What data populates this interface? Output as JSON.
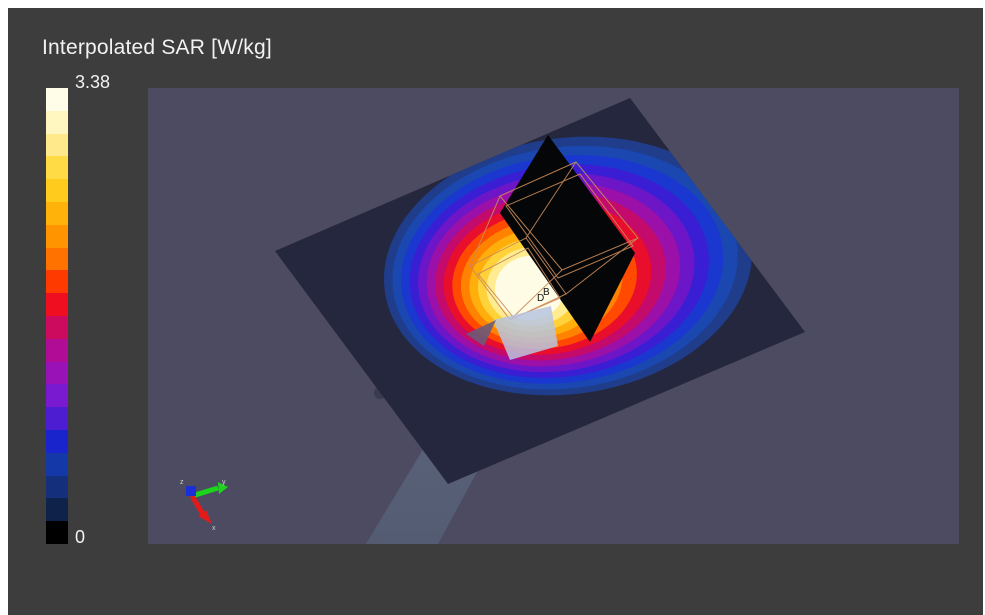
{
  "colorbar": {
    "title": "Interpolated SAR [W/kg]",
    "max_label": "3.38",
    "min_label": "0",
    "colors": [
      "#fffde8",
      "#fff6c0",
      "#ffe98a",
      "#ffdc46",
      "#ffcc1e",
      "#ffb20a",
      "#ff9400",
      "#ff7200",
      "#ff3a00",
      "#ee0e20",
      "#cc0a5e",
      "#b00c96",
      "#9812b8",
      "#7a1ad0",
      "#4d1dd2",
      "#1a24cc",
      "#1538a8",
      "#14307c",
      "#0f2249",
      "#000000"
    ]
  },
  "viewport": {
    "background": "#4c4b62",
    "axes_labels": [
      "y",
      "x",
      "z"
    ],
    "model_labels": [
      "B",
      "D"
    ]
  }
}
